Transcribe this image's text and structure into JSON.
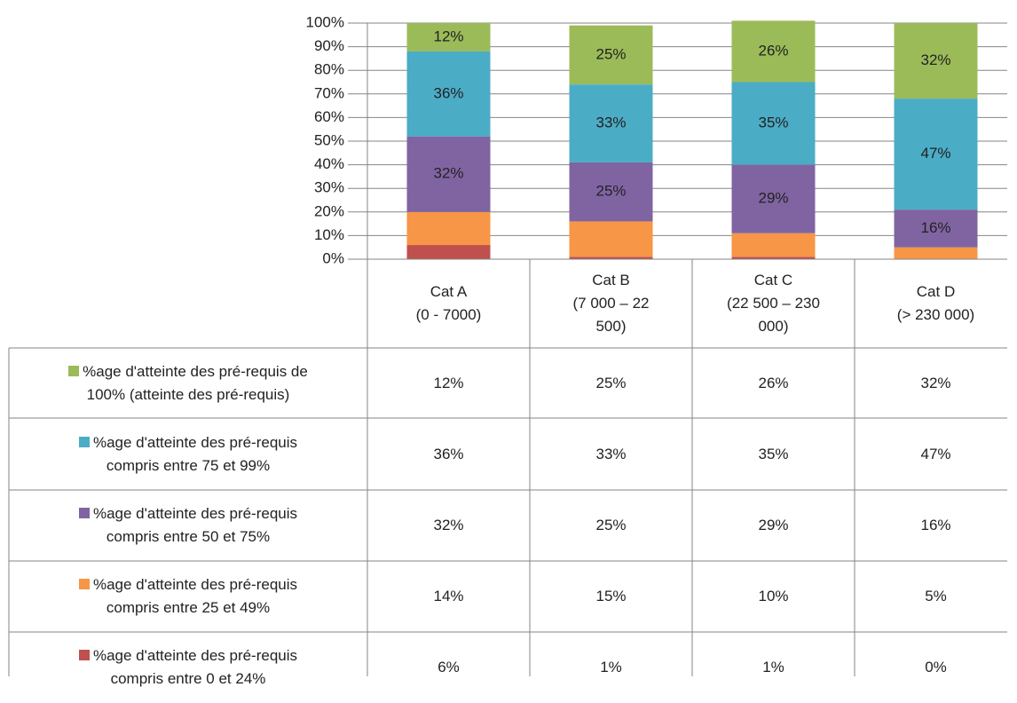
{
  "chart_data": {
    "type": "stacked_bar",
    "categories": [
      "Cat A\n(0 - 7000)",
      "Cat B\n(7 000 – 22\n500)",
      "Cat C\n(22 500 – 230\n000)",
      "Cat D\n(> 230 000)"
    ],
    "series": [
      {
        "name": "%age d'atteinte des pré-requis de\n100% (atteinte des pré-requis)",
        "color": "#9bbb59",
        "data_labels": true,
        "values": [
          12,
          25,
          26,
          32
        ],
        "value_labels": [
          "12%",
          "25%",
          "26%",
          "32%"
        ]
      },
      {
        "name": "%age d'atteinte des pré-requis\ncompris entre 75 et 99%",
        "color": "#4bacc6",
        "data_labels": true,
        "values": [
          36,
          33,
          35,
          47
        ],
        "value_labels": [
          "36%",
          "33%",
          "35%",
          "47%"
        ]
      },
      {
        "name": "%age d'atteinte des pré-requis\ncompris entre 50 et 75%",
        "color": "#8064a2",
        "data_labels": true,
        "values": [
          32,
          25,
          29,
          16
        ],
        "value_labels": [
          "32%",
          "25%",
          "29%",
          "16%"
        ]
      },
      {
        "name": "%age d'atteinte des pré-requis\ncompris entre 25 et 49%",
        "color": "#f79646",
        "data_labels": false,
        "values": [
          14,
          15,
          10,
          5
        ],
        "value_labels": [
          "14%",
          "15%",
          "10%",
          "5%"
        ]
      },
      {
        "name": "%age d'atteinte des pré-requis\ncompris entre 0 et 24%",
        "color": "#c0504d",
        "data_labels": false,
        "values": [
          6,
          1,
          1,
          0
        ],
        "value_labels": [
          "6%",
          "1%",
          "1%",
          "0%"
        ]
      }
    ],
    "ylim": [
      0,
      100
    ],
    "yticks": [
      {
        "value": 0,
        "label": "0%"
      },
      {
        "value": 10,
        "label": "10%"
      },
      {
        "value": 20,
        "label": "20%"
      },
      {
        "value": 30,
        "label": "30%"
      },
      {
        "value": 40,
        "label": "40%"
      },
      {
        "value": 50,
        "label": "50%"
      },
      {
        "value": 60,
        "label": "60%"
      },
      {
        "value": 70,
        "label": "70%"
      },
      {
        "value": 80,
        "label": "80%"
      },
      {
        "value": 90,
        "label": "90%"
      },
      {
        "value": 100,
        "label": "100%"
      }
    ],
    "grid": true,
    "data_table": true
  }
}
